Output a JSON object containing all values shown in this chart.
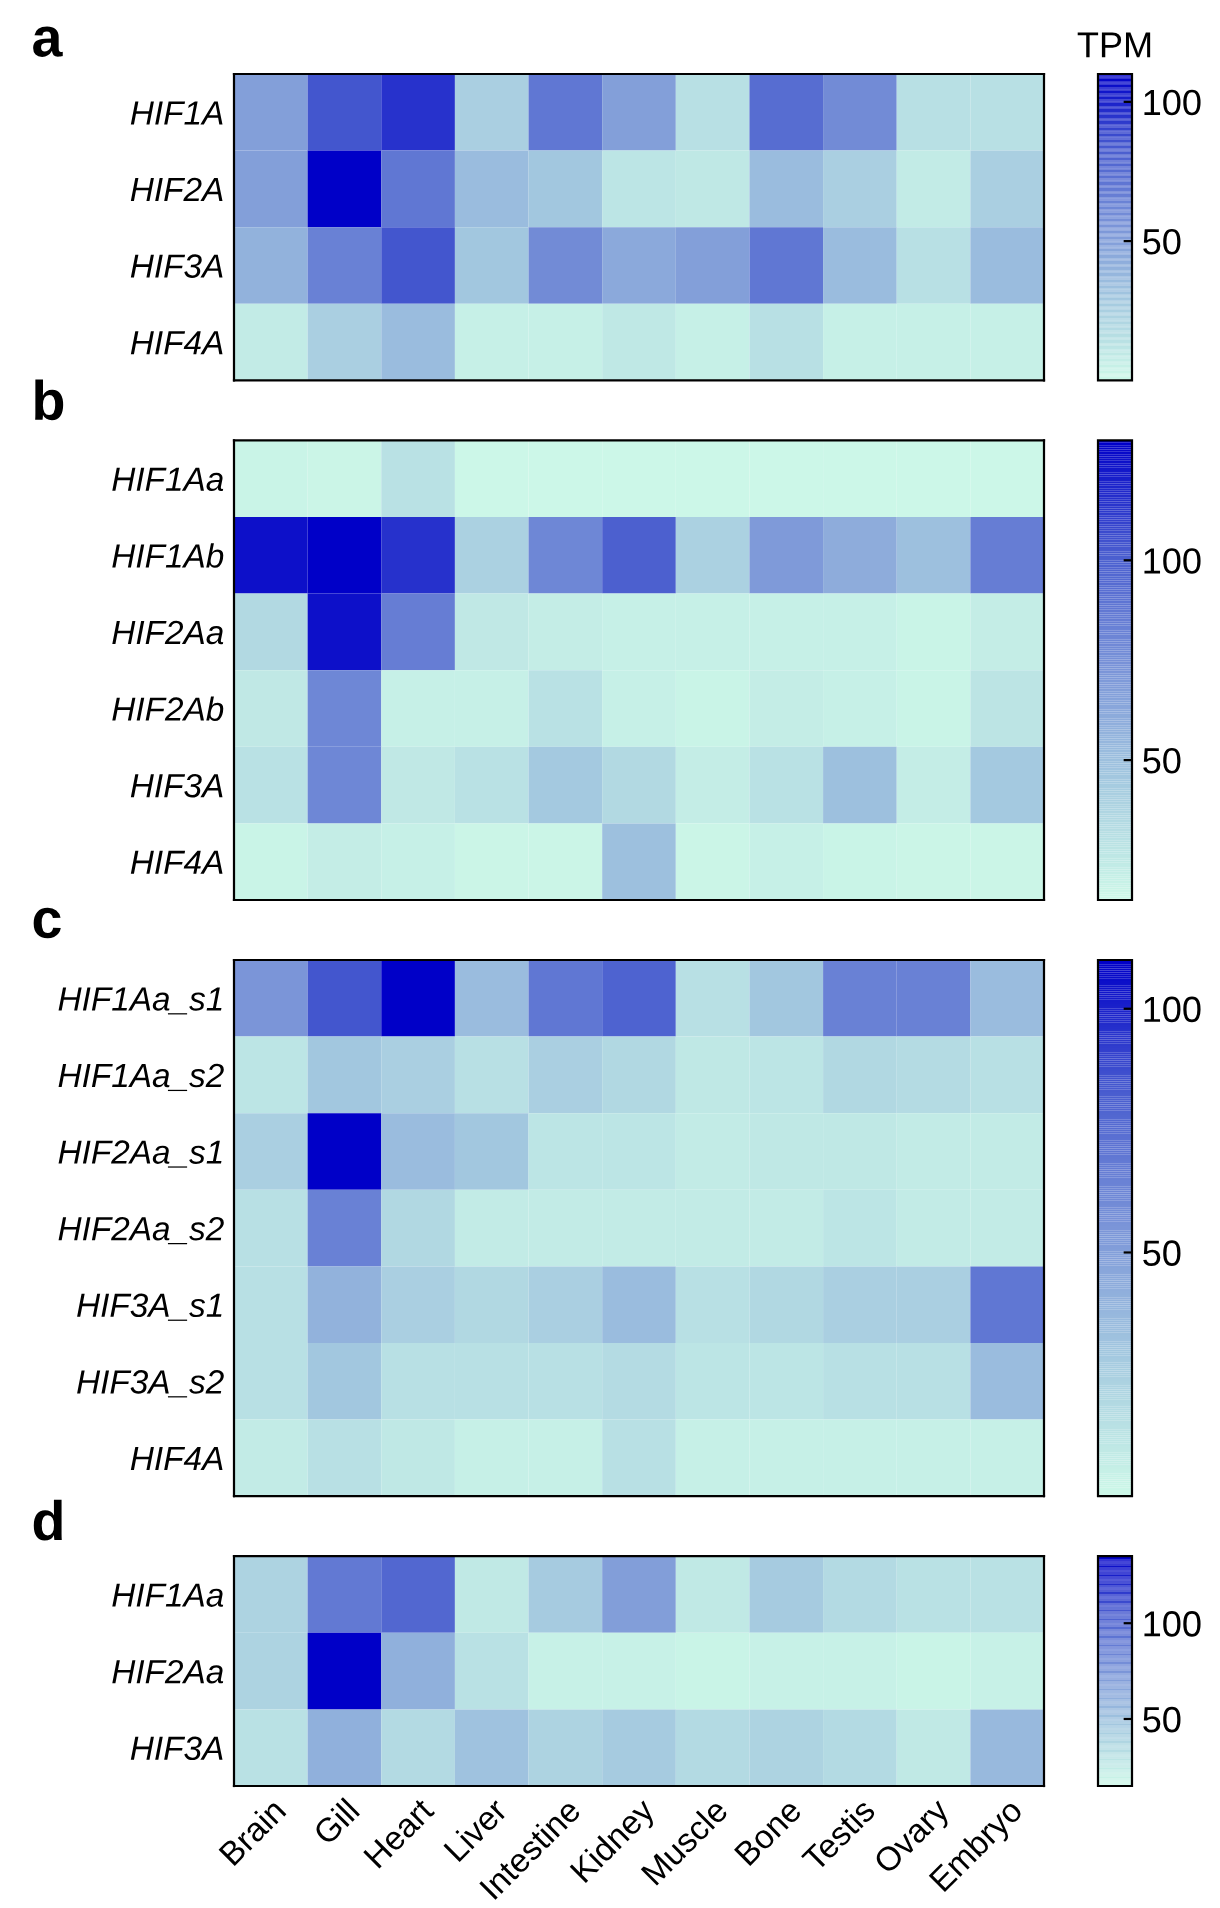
{
  "chart_data": [
    {
      "type": "heatmap",
      "title": "a",
      "clabel": "TPM",
      "tick_labels": "y",
      "categories": [
        null,
        null,
        null,
        null,
        null,
        null,
        null,
        null,
        null,
        null,
        null
      ],
      "y_categories": [
        "HIF1A",
        "HIF2A",
        "HIF3A",
        "HIF4A"
      ],
      "cells": [
        [
          50,
          85,
          95,
          25,
          70,
          50,
          15,
          75,
          60,
          15,
          15
        ],
        [
          50,
          110,
          70,
          35,
          30,
          12,
          10,
          35,
          25,
          8,
          25
        ],
        [
          40,
          65,
          85,
          30,
          60,
          45,
          50,
          70,
          35,
          15,
          35
        ],
        [
          8,
          25,
          35,
          5,
          5,
          10,
          5,
          15,
          5,
          5,
          5
        ]
      ],
      "clim": [
        0,
        110
      ],
      "cticks": [
        50,
        100
      ]
    },
    {
      "type": "heatmap",
      "title": "b",
      "tick_labels": "y",
      "categories": [
        null,
        null,
        null,
        null,
        null,
        null,
        null,
        null,
        null,
        null,
        null
      ],
      "y_categories": [
        "HIF1Aa",
        "HIF1Ab",
        "HIF2Aa",
        "HIF2Ab",
        "HIF3A",
        "HIF4A"
      ],
      "cells": [
        [
          18,
          17,
          30,
          16,
          16,
          16,
          16,
          16,
          16,
          16,
          16
        ],
        [
          125,
          130,
          115,
          40,
          80,
          100,
          40,
          70,
          60,
          50,
          85
        ],
        [
          35,
          125,
          85,
          25,
          22,
          20,
          20,
          20,
          20,
          18,
          22
        ],
        [
          25,
          80,
          20,
          20,
          30,
          20,
          18,
          22,
          20,
          18,
          28
        ],
        [
          30,
          80,
          25,
          30,
          45,
          35,
          22,
          30,
          50,
          22,
          45
        ],
        [
          18,
          22,
          20,
          17,
          17,
          50,
          17,
          20,
          18,
          17,
          17
        ]
      ],
      "clim": [
        15,
        130
      ],
      "cticks": [
        50,
        100
      ]
    },
    {
      "type": "heatmap",
      "title": "c",
      "tick_labels": "y",
      "categories": [
        null,
        null,
        null,
        null,
        null,
        null,
        null,
        null,
        null,
        null,
        null
      ],
      "y_categories": [
        "HIF1Aa_s1",
        "HIF1Aa_s2",
        "HIF2Aa_s1",
        "HIF2Aa_s2",
        "HIF3A_s1",
        "HIF3A_s2",
        "HIF4A"
      ],
      "cells": [
        [
          55,
          85,
          110,
          35,
          70,
          80,
          15,
          30,
          65,
          65,
          35
        ],
        [
          12,
          30,
          25,
          15,
          25,
          20,
          10,
          12,
          20,
          18,
          15
        ],
        [
          25,
          110,
          35,
          30,
          12,
          12,
          8,
          10,
          10,
          8,
          8
        ],
        [
          15,
          65,
          20,
          8,
          8,
          8,
          8,
          8,
          12,
          8,
          8
        ],
        [
          15,
          40,
          25,
          20,
          25,
          35,
          15,
          20,
          25,
          25,
          70
        ],
        [
          15,
          30,
          15,
          15,
          15,
          18,
          12,
          12,
          15,
          15,
          35
        ],
        [
          8,
          15,
          10,
          5,
          5,
          15,
          5,
          5,
          5,
          5,
          5
        ]
      ],
      "clim": [
        0,
        110
      ],
      "cticks": [
        50,
        100
      ]
    },
    {
      "type": "heatmap",
      "title": "d",
      "categories": [
        "Brain",
        "Gill",
        "Heart",
        "Liver",
        "Intestine",
        "Kidney",
        "Muscle",
        "Bone",
        "Testis",
        "Ovary",
        "Embryo"
      ],
      "y_categories": [
        "HIF1Aa",
        "HIF2Aa",
        "HIF3A"
      ],
      "cells": [
        [
          40,
          90,
          100,
          25,
          45,
          70,
          25,
          45,
          35,
          30,
          30
        ],
        [
          40,
          135,
          60,
          30,
          20,
          20,
          18,
          20,
          20,
          18,
          20
        ],
        [
          30,
          60,
          35,
          50,
          40,
          45,
          35,
          40,
          35,
          25,
          55
        ]
      ],
      "clim": [
        15,
        135
      ],
      "cticks": [
        50,
        100
      ]
    }
  ]
}
